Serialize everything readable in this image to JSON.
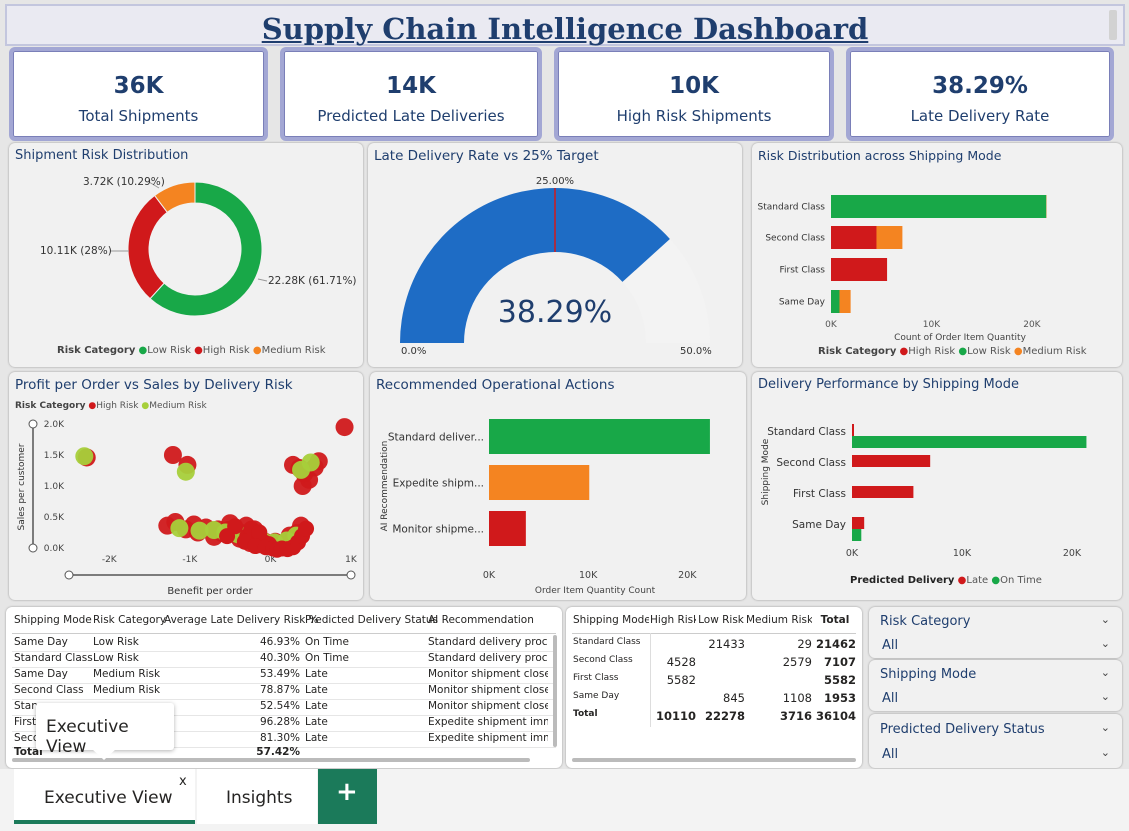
{
  "dashboard_title": "Supply Chain Intelligence Dashboard",
  "kpis": [
    {
      "value": "36K",
      "label": "Total Shipments"
    },
    {
      "value": "14K",
      "label": "Predicted Late Deliveries"
    },
    {
      "value": "10K",
      "label": "High Risk Shipments"
    },
    {
      "value": "38.29%",
      "label": "Late Delivery Rate"
    }
  ],
  "colors": {
    "high_risk": "#d0191b",
    "low_risk": "#18a848",
    "medium_risk": "#f48421",
    "gauge_fill": "#1e6cc5",
    "gauge_bg": "#f3f3f3",
    "on_time_scatter": "#a6cf3a",
    "title_blue": "#1f3e6e",
    "tab_accent": "#1b7a5a"
  },
  "donut": {
    "title": "Shipment Risk Distribution",
    "legend_title": "Risk Category",
    "labels": {
      "low": "22.28K (61.71%)",
      "high": "10.11K (28%)",
      "medium": "3.72K (10.29%)"
    },
    "legend": [
      "Low Risk",
      "High Risk",
      "Medium Risk"
    ],
    "chart_data": {
      "type": "pie",
      "categories": [
        "Low Risk",
        "High Risk",
        "Medium Risk"
      ],
      "values": [
        22278,
        10110,
        3716
      ]
    }
  },
  "gauge": {
    "title": "Late Delivery Rate vs 25% Target",
    "value_label": "38.29%",
    "target_label": "25.00%",
    "min_label": "0.0%",
    "max_label": "50.0%",
    "chart_data": {
      "type": "gauge",
      "value": 38.29,
      "target": 25.0,
      "min": 0,
      "max": 50
    }
  },
  "risk_by_mode": {
    "title": "Risk Distribution across Shipping Mode",
    "xlabel": "Count of Order Item Quantity",
    "ticks": [
      "0K",
      "10K",
      "20K"
    ],
    "legend_title": "Risk Category",
    "legend": [
      "High Risk",
      "Low Risk",
      "Medium Risk"
    ],
    "chart_data": {
      "type": "bar",
      "categories": [
        "Standard Class",
        "Second Class",
        "First Class",
        "Same Day"
      ],
      "series": [
        {
          "name": "High Risk",
          "values": [
            0,
            4528,
            5582,
            0
          ]
        },
        {
          "name": "Low Risk",
          "values": [
            21433,
            0,
            0,
            845
          ]
        },
        {
          "name": "Medium Risk",
          "values": [
            29,
            2579,
            0,
            1108
          ]
        }
      ],
      "xlim": [
        0,
        22000
      ]
    }
  },
  "scatter": {
    "title": "Profit per Order vs Sales by Delivery Risk",
    "legend_title": "Risk Category",
    "legend": [
      "High Risk",
      "Medium Risk"
    ],
    "xlabel": "Benefit per order",
    "ylabel": "Sales per customer",
    "xticks": [
      "-2K",
      "-1K",
      "0K",
      "1K"
    ],
    "yticks": [
      "2.0K",
      "1.5K",
      "1.0K",
      "0.5K",
      "0.0K"
    ],
    "chart_data": {
      "type": "scatter",
      "xlim": [
        -2500,
        1000
      ],
      "ylim": [
        0,
        2000
      ],
      "series": [
        {
          "name": "High Risk",
          "points": [
            [
              -2280,
              1460
            ],
            [
              -1210,
              1500
            ],
            [
              -1030,
              1340
            ],
            [
              -1280,
              360
            ],
            [
              -1180,
              420
            ],
            [
              -950,
              380
            ],
            [
              -800,
              330
            ],
            [
              -650,
              300
            ],
            [
              -520,
              290
            ],
            [
              -420,
              260
            ],
            [
              -350,
              240
            ],
            [
              -280,
              200
            ],
            [
              -200,
              160
            ],
            [
              -140,
              140
            ],
            [
              -80,
              110
            ],
            [
              -500,
              400
            ],
            [
              -300,
              360
            ],
            [
              -200,
              300
            ],
            [
              -600,
              240
            ],
            [
              -380,
              150
            ],
            [
              -250,
              80
            ],
            [
              -120,
              60
            ],
            [
              -30,
              40
            ],
            [
              20,
              20
            ],
            [
              80,
              40
            ],
            [
              150,
              30
            ],
            [
              220,
              60
            ],
            [
              280,
              140
            ],
            [
              330,
              240
            ],
            [
              380,
              360
            ],
            [
              280,
              1340
            ],
            [
              360,
              1290
            ],
            [
              420,
              1200
            ],
            [
              480,
              1100
            ],
            [
              550,
              1300
            ],
            [
              600,
              1400
            ],
            [
              920,
              1950
            ],
            [
              -700,
              180
            ],
            [
              -900,
              250
            ],
            [
              -1050,
              300
            ],
            [
              -450,
              320
            ],
            [
              -150,
              200
            ],
            [
              60,
              100
            ],
            [
              240,
              200
            ],
            [
              400,
              1000
            ]
          ]
        },
        {
          "name": "Medium Risk",
          "points": [
            [
              -2310,
              1480
            ],
            [
              -1050,
              1230
            ],
            [
              -1130,
              320
            ],
            [
              -880,
              280
            ],
            [
              -700,
              290
            ],
            [
              -560,
              250
            ],
            [
              -400,
              220
            ],
            [
              -250,
              180
            ],
            [
              -100,
              120
            ],
            [
              50,
              90
            ],
            [
              200,
              120
            ],
            [
              320,
              200
            ],
            [
              500,
              1380
            ],
            [
              380,
              1260
            ]
          ]
        }
      ]
    }
  },
  "actions": {
    "title": "Recommended Operational Actions",
    "xlabel": "Order Item Quantity Count",
    "ylabel": "AI Recommendation",
    "ticks": [
      "0K",
      "10K",
      "20K"
    ],
    "categories": [
      "Standard deliver...",
      "Expedite shipm...",
      "Monitor shipme..."
    ],
    "chart_data": {
      "type": "bar",
      "categories": [
        "Standard deliver...",
        "Expedite shipm...",
        "Monitor shipme..."
      ],
      "values": [
        22278,
        10110,
        3716
      ],
      "xlim": [
        0,
        24000
      ]
    }
  },
  "delivery_perf": {
    "title": "Delivery Performance by Shipping Mode",
    "ylabel": "Shipping Mode",
    "ticks": [
      "0K",
      "10K",
      "20K"
    ],
    "legend_title": "Predicted Delivery",
    "legend": [
      "Late",
      "On Time"
    ],
    "chart_data": {
      "type": "bar",
      "categories": [
        "Standard Class",
        "Second Class",
        "First Class",
        "Same Day"
      ],
      "series": [
        {
          "name": "Late",
          "values": [
            150,
            7107,
            5582,
            1108
          ]
        },
        {
          "name": "On Time",
          "values": [
            21312,
            0,
            0,
            845
          ]
        }
      ],
      "xlim": [
        0,
        22000
      ]
    }
  },
  "detail_table": {
    "headers": [
      "Shipping Mode",
      "Risk Category",
      "Average Late Delivery Risk %",
      "Predicted Delivery Status",
      "AI Recommendation"
    ],
    "rows": [
      [
        "Same Day",
        "Low Risk",
        "46.93%",
        "On Time",
        "Standard delivery process"
      ],
      [
        "Standard Class",
        "Low Risk",
        "40.30%",
        "On Time",
        "Standard delivery process"
      ],
      [
        "Same Day",
        "Medium Risk",
        "53.49%",
        "Late",
        "Monitor shipment closely"
      ],
      [
        "Second Class",
        "Medium Risk",
        "78.87%",
        "Late",
        "Monitor shipment closely"
      ],
      [
        "Stan",
        "",
        "52.54%",
        "Late",
        "Monitor shipment closely"
      ],
      [
        "First",
        "",
        "96.28%",
        "Late",
        "Expedite shipment immedi"
      ],
      [
        "Seco",
        "",
        "81.30%",
        "Late",
        "Expedite shipment immedi"
      ]
    ],
    "total_label": "Total",
    "total_value": "57.42%"
  },
  "matrix": {
    "headers": [
      "Shipping Mode",
      "High Risk",
      "Low Risk",
      "Medium Risk",
      "Total"
    ],
    "rows": [
      [
        "Standard Class",
        "",
        "21433",
        "29",
        "21462"
      ],
      [
        "Second Class",
        "4528",
        "",
        "2579",
        "7107"
      ],
      [
        "First Class",
        "5582",
        "",
        "",
        "5582"
      ],
      [
        "Same Day",
        "",
        "845",
        "1108",
        "1953"
      ]
    ],
    "total_row": [
      "Total",
      "10110",
      "22278",
      "3716",
      "36104"
    ]
  },
  "slicers": [
    {
      "title": "Risk Category",
      "value": "All"
    },
    {
      "title": "Shipping Mode",
      "value": "All"
    },
    {
      "title": "Predicted Delivery Status",
      "value": "All"
    }
  ],
  "tooltip": "Executive View",
  "tabs": [
    {
      "label": "Executive View",
      "active": true
    },
    {
      "label": "Insights",
      "active": false
    }
  ],
  "tab_close": "x",
  "tab_add": "+"
}
